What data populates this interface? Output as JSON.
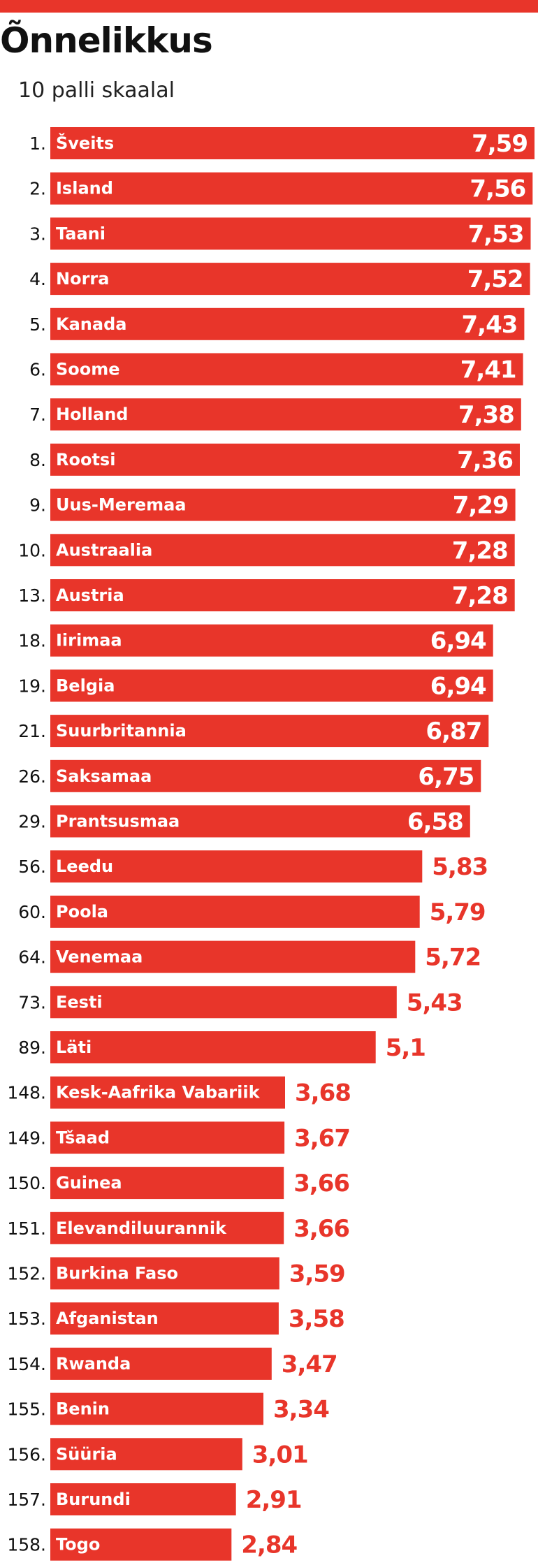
{
  "title": "Õnnelikkus",
  "subtitle": "10 palli skaalal",
  "colors": {
    "bar": "#e8352a",
    "value_outside": "#e8352a",
    "value_inside": "#ffffff",
    "text": "#111111"
  },
  "chart_data": {
    "type": "bar",
    "orientation": "horizontal",
    "title": "Õnnelikkus",
    "subtitle": "10 palli skaalal",
    "ranks": [
      "1.",
      "2.",
      "3.",
      "4.",
      "5.",
      "6.",
      "7.",
      "8.",
      "9.",
      "10.",
      "13.",
      "18.",
      "19.",
      "21.",
      "26.",
      "29.",
      "56.",
      "60.",
      "64.",
      "73.",
      "89.",
      "148.",
      "149.",
      "150.",
      "151.",
      "152.",
      "153.",
      "154.",
      "155.",
      "156.",
      "157.",
      "158."
    ],
    "categories": [
      "Šveits",
      "Island",
      "Taani",
      "Norra",
      "Kanada",
      "Soome",
      "Holland",
      "Rootsi",
      "Uus-Meremaa",
      "Austraalia",
      "Austria",
      "Iirimaa",
      "Belgia",
      "Suurbritannia",
      "Saksamaa",
      "Prantsusmaa",
      "Leedu",
      "Poola",
      "Venemaa",
      "Eesti",
      "Läti",
      "Kesk-Aafrika Vabariik",
      "Tšaad",
      "Guinea",
      "Elevandiluurannik",
      "Burkina Faso",
      "Afganistan",
      "Rwanda",
      "Benin",
      "Süüria",
      "Burundi",
      "Togo"
    ],
    "values": [
      7.59,
      7.56,
      7.53,
      7.52,
      7.43,
      7.41,
      7.38,
      7.36,
      7.29,
      7.28,
      7.28,
      6.94,
      6.94,
      6.87,
      6.75,
      6.58,
      5.83,
      5.79,
      5.72,
      5.43,
      5.1,
      3.68,
      3.67,
      3.66,
      3.66,
      3.59,
      3.58,
      3.47,
      3.34,
      3.01,
      2.91,
      2.84
    ],
    "value_labels": [
      "7,59",
      "7,56",
      "7,53",
      "7,52",
      "7,43",
      "7,41",
      "7,38",
      "7,36",
      "7,29",
      "7,28",
      "7,28",
      "6,94",
      "6,94",
      "6,87",
      "6,75",
      "6,58",
      "5,83",
      "5,79",
      "5,72",
      "5,43",
      "5,1",
      "3,68",
      "3,67",
      "3,66",
      "3,66",
      "3,59",
      "3,58",
      "3,47",
      "3,34",
      "3,01",
      "2,91",
      "2,84"
    ],
    "label_inside_threshold": 6.5,
    "xlim": [
      0,
      7.59
    ]
  }
}
